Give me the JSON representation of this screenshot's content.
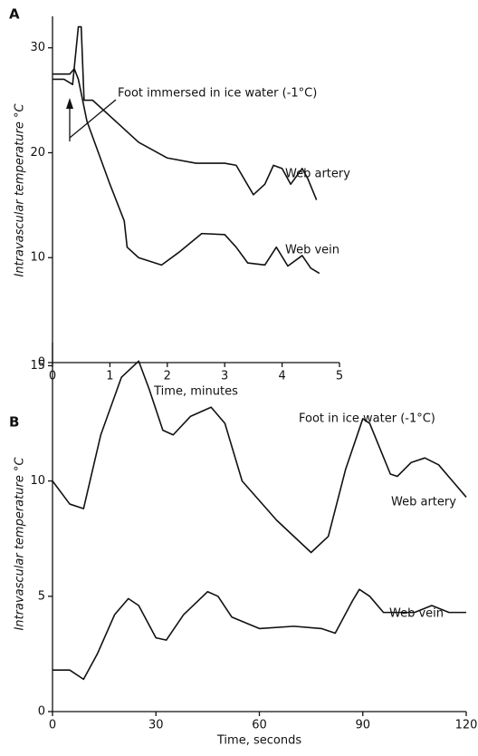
{
  "chart_data": [
    {
      "type": "line",
      "panel": "A",
      "annotation": "Foot immersed in ice water (-1°C)",
      "x_label": "Time, minutes",
      "y_label": "Intravascular temperature °C",
      "xlim": [
        0,
        5
      ],
      "ylim": [
        0,
        33
      ],
      "xticks": [
        0,
        1,
        2,
        3,
        4,
        5
      ],
      "yticks": [
        0,
        10,
        20,
        30
      ],
      "series": [
        {
          "name": "Web artery",
          "color": "#111111",
          "x": [
            0,
            0.2,
            0.35,
            0.45,
            0.5,
            0.55,
            0.7,
            1.0,
            1.5,
            2.0,
            2.5,
            3.0,
            3.2,
            3.5,
            3.7,
            3.85,
            4.0,
            4.15,
            4.35,
            4.45,
            4.6
          ],
          "values": [
            27,
            27,
            26.5,
            32,
            32,
            25,
            25,
            23.5,
            21,
            19.5,
            19,
            19,
            18.8,
            16,
            17,
            18.8,
            18.5,
            17,
            18.5,
            17.5,
            15.5
          ]
        },
        {
          "name": "Web vein",
          "color": "#111111",
          "x": [
            0,
            0.3,
            0.38,
            0.45,
            0.6,
            0.8,
            1.0,
            1.25,
            1.3,
            1.5,
            1.9,
            2.2,
            2.6,
            3.0,
            3.2,
            3.4,
            3.7,
            3.9,
            4.1,
            4.35,
            4.5,
            4.65
          ],
          "values": [
            27.5,
            27.5,
            28,
            27,
            23,
            20,
            17,
            13.5,
            11,
            10,
            9.3,
            10.5,
            12.3,
            12.2,
            11,
            9.5,
            9.3,
            11,
            9.2,
            10.2,
            9,
            8.5
          ]
        }
      ]
    },
    {
      "type": "line",
      "panel": "B",
      "annotation": "Foot in ice water (-1°C)",
      "x_label": "Time, seconds",
      "y_label": "Intravascular temperature °C",
      "xlim": [
        0,
        120
      ],
      "ylim": [
        0,
        16
      ],
      "xticks": [
        0,
        30,
        60,
        90,
        120
      ],
      "yticks": [
        0,
        5,
        10,
        15
      ],
      "series": [
        {
          "name": "Web artery",
          "color": "#111111",
          "x": [
            0,
            5,
            9,
            14,
            20,
            25,
            28,
            32,
            35,
            40,
            46,
            50,
            55,
            65,
            75,
            80,
            85,
            90,
            92,
            98,
            100,
            104,
            108,
            112,
            116,
            120
          ],
          "values": [
            10,
            9,
            8.8,
            12,
            14.5,
            15.2,
            14,
            12.2,
            12,
            12.8,
            13.2,
            12.5,
            10,
            8.3,
            6.9,
            7.6,
            10.5,
            12.7,
            12.5,
            10.3,
            10.2,
            10.8,
            11,
            10.7,
            10,
            9.3
          ]
        },
        {
          "name": "Web vein",
          "color": "#111111",
          "x": [
            0,
            5,
            9,
            13,
            18,
            22,
            25,
            30,
            33,
            38,
            45,
            48,
            52,
            60,
            70,
            78,
            82,
            87,
            89,
            92,
            96,
            105,
            110,
            115,
            120
          ],
          "values": [
            1.8,
            1.8,
            1.4,
            2.5,
            4.2,
            4.9,
            4.6,
            3.2,
            3.1,
            4.2,
            5.2,
            5,
            4.1,
            3.6,
            3.7,
            3.6,
            3.4,
            4.8,
            5.3,
            5,
            4.3,
            4.3,
            4.6,
            4.3,
            4.3
          ]
        }
      ]
    }
  ]
}
